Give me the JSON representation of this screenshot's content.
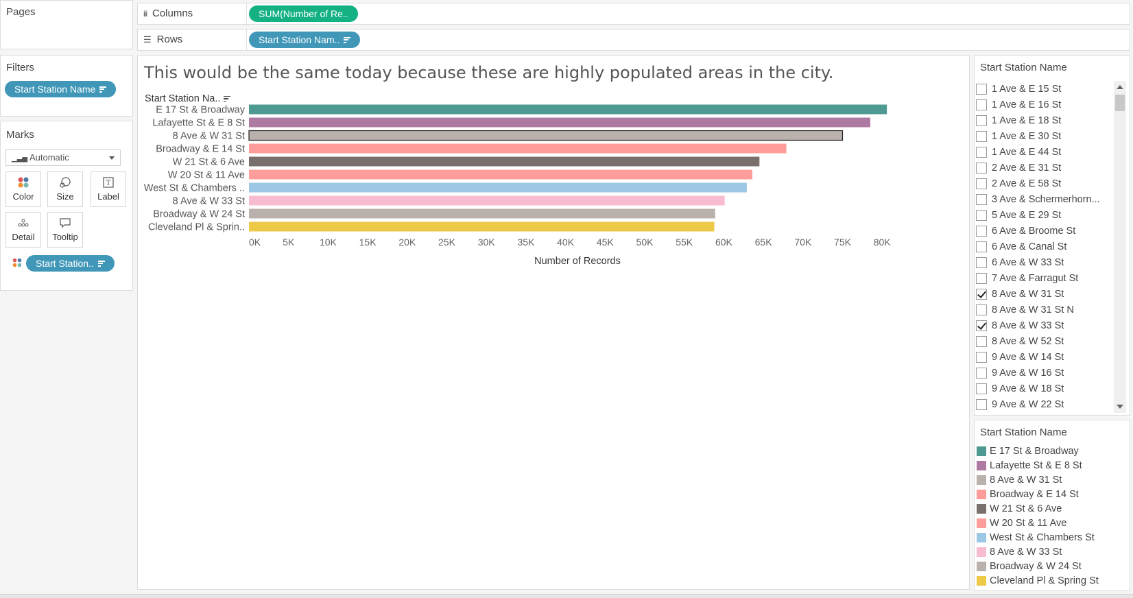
{
  "shelves": {
    "pages_title": "Pages",
    "columns_label": "Columns",
    "columns_pill": "SUM(Number of Re..",
    "rows_label": "Rows",
    "rows_pill": "Start Station Nam.."
  },
  "filters": {
    "title": "Filters",
    "pill": "Start Station Name"
  },
  "marks": {
    "title": "Marks",
    "type": "Automatic",
    "buttons": [
      "Color",
      "Size",
      "Label",
      "Detail",
      "Tooltip"
    ],
    "color_pill": "Start Station.."
  },
  "worksheet": {
    "title": "This would be the same today because these are highly populated areas in the city.",
    "row_header": "Start Station Na.."
  },
  "chart_data": {
    "type": "bar",
    "orientation": "horizontal",
    "categories": [
      "E 17 St & Broadway",
      "Lafayette St & E 8 St",
      "8 Ave & W 31 St",
      "Broadway & E 14 St",
      "W 21 St & 6 Ave",
      "W 20 St & 11 Ave",
      "West St & Chambers ..",
      "8 Ave & W 33 St",
      "Broadway & W 24 St",
      "Cleveland Pl & Sprin.."
    ],
    "values": [
      80600,
      78500,
      75000,
      67900,
      64500,
      63600,
      62900,
      60100,
      58900,
      58800
    ],
    "colors": [
      "#4e9a92",
      "#ae7aa1",
      "#bab0ac",
      "#ff9d9a",
      "#79706e",
      "#ff9d9a",
      "#9dc8e5",
      "#f9bbd0",
      "#bab0ac",
      "#edc948"
    ],
    "highlighted": "8 Ave & W 31 St",
    "xlabel": "Number of Records",
    "ylabel": "Start Station Na..",
    "xlim": [
      0,
      85000
    ],
    "xticks": [
      "0K",
      "5K",
      "10K",
      "15K",
      "20K",
      "25K",
      "30K",
      "35K",
      "40K",
      "45K",
      "50K",
      "55K",
      "60K",
      "65K",
      "70K",
      "75K",
      "80K"
    ],
    "grid": false
  },
  "filter_card": {
    "title": "Start Station Name",
    "items": [
      {
        "label": "1 Ave & E 15 St",
        "checked": false
      },
      {
        "label": "1 Ave & E 16 St",
        "checked": false
      },
      {
        "label": "1 Ave & E 18 St",
        "checked": false
      },
      {
        "label": "1 Ave & E 30 St",
        "checked": false
      },
      {
        "label": "1 Ave & E 44 St",
        "checked": false
      },
      {
        "label": "2 Ave & E 31 St",
        "checked": false
      },
      {
        "label": "2 Ave & E 58 St",
        "checked": false
      },
      {
        "label": "3 Ave & Schermerhorn...",
        "checked": false
      },
      {
        "label": "5 Ave & E 29 St",
        "checked": false
      },
      {
        "label": "6 Ave & Broome St",
        "checked": false
      },
      {
        "label": "6 Ave & Canal St",
        "checked": false
      },
      {
        "label": "6 Ave & W 33 St",
        "checked": false
      },
      {
        "label": "7 Ave & Farragut St",
        "checked": false
      },
      {
        "label": "8 Ave & W 31 St",
        "checked": true
      },
      {
        "label": "8 Ave & W 31 St N",
        "checked": false
      },
      {
        "label": "8 Ave & W 33 St",
        "checked": true
      },
      {
        "label": "8 Ave & W 52 St",
        "checked": false
      },
      {
        "label": "9 Ave & W 14 St",
        "checked": false
      },
      {
        "label": "9 Ave & W 16 St",
        "checked": false
      },
      {
        "label": "9 Ave & W 18 St",
        "checked": false
      },
      {
        "label": "9 Ave & W 22 St",
        "checked": false
      }
    ]
  },
  "legend": {
    "title": "Start Station Name",
    "items": [
      {
        "label": "E 17 St & Broadway",
        "color": "#4e9a92"
      },
      {
        "label": "Lafayette St & E 8 St",
        "color": "#ae7aa1"
      },
      {
        "label": "8 Ave & W 31 St",
        "color": "#bab0ac"
      },
      {
        "label": "Broadway & E 14 St",
        "color": "#ff9d9a"
      },
      {
        "label": "W 21 St & 6 Ave",
        "color": "#79706e"
      },
      {
        "label": "W 20 St & 11 Ave",
        "color": "#ff9d9a"
      },
      {
        "label": "West St & Chambers St",
        "color": "#9dc8e5"
      },
      {
        "label": "8 Ave & W 33 St",
        "color": "#f9bbd0"
      },
      {
        "label": "Broadway & W 24 St",
        "color": "#bab0ac"
      },
      {
        "label": "Cleveland Pl & Spring St",
        "color": "#edc948"
      }
    ]
  }
}
